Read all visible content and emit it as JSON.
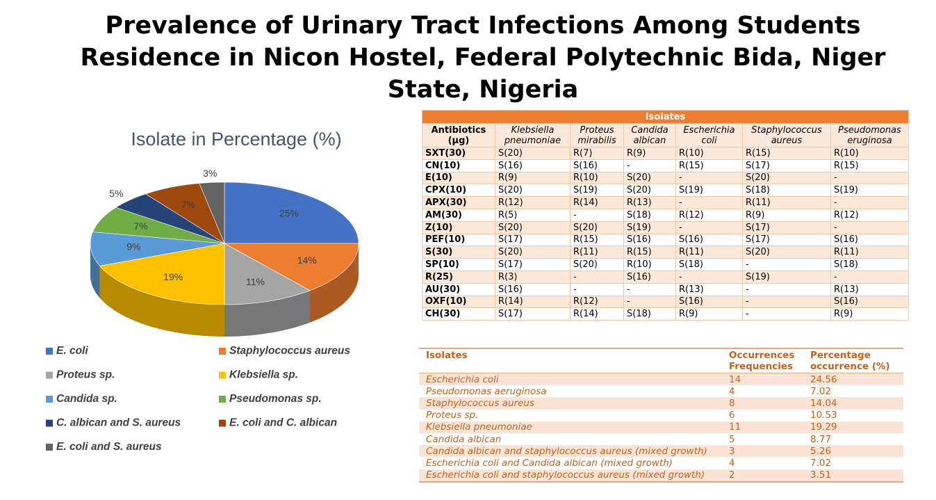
{
  "title": "Prevalence of Urinary Tract Infections Among Students Residence in Nicon Hostel, Federal Polytechnic Bida, Niger State, Nigeria",
  "chart_data": {
    "type": "pie",
    "title": "Isolate in Percentage  (%)",
    "categories": [
      "E. coli",
      "Staphylococcus aureus",
      "Proteus sp.",
      "Klebsiella sp.",
      "Candida sp.",
      "Pseudomonas sp.",
      "C. albican and S. aureus",
      "E. coli and C. albican",
      "E. coli and S. aureus"
    ],
    "values": [
      25,
      14,
      11,
      19,
      9,
      7,
      5,
      7,
      3
    ],
    "value_labels": [
      "25%",
      "14%",
      "11%",
      "19%",
      "9%",
      "7%",
      "5%",
      "7%",
      "3%"
    ],
    "colors": [
      "#4472c4",
      "#ed7d31",
      "#a5a5a5",
      "#ffc000",
      "#5b9bd5",
      "#70ad47",
      "#264478",
      "#9e480e",
      "#636363"
    ]
  },
  "table1": {
    "title": "Isolates",
    "header": [
      "Antibiotics (µg)",
      "Klebsiella pneumoniae",
      "Proteus mirabilis",
      "Candida albican",
      "Escherichia coli",
      "Staphylococcus aureus",
      "Pseudomonas eruginosa"
    ],
    "rows": [
      [
        "SXT(30)",
        "S(20)",
        "R(7)",
        "R(9)",
        "R(10)",
        "R(15)",
        "R(10)"
      ],
      [
        "CN(10)",
        "S(16)",
        "S(16)",
        "-",
        "R(15)",
        "S(17)",
        "R(15)"
      ],
      [
        "E(10)",
        "R(9)",
        "R(10)",
        "S(20)",
        "-",
        "S(20)",
        "-"
      ],
      [
        "CPX(10)",
        "S(20)",
        "S(19)",
        "S(20)",
        "S(19)",
        "S(18)",
        "S(19)"
      ],
      [
        "APX(30)",
        "R(12)",
        "R(14)",
        "R(13)",
        "-",
        "R(11)",
        "-"
      ],
      [
        "AM(30)",
        "R(5)",
        "-",
        "S(18)",
        "R(12)",
        "R(9)",
        "R(12)"
      ],
      [
        "Z(10)",
        "S(20)",
        "S(20)",
        "S(19)",
        "-",
        "S(17)",
        "-"
      ],
      [
        "PEF(10)",
        "S(17)",
        "R(15)",
        "S(16)",
        "S(16)",
        "S(17)",
        "S(16)"
      ],
      [
        "S(30)",
        "S(20)",
        "R(11)",
        "R(15)",
        "R(11)",
        "S(20)",
        "R(11)"
      ],
      [
        "SP(10)",
        "S(17)",
        "S(20)",
        "R(10)",
        "S(18)",
        "-",
        "S(18)"
      ],
      [
        "R(25)",
        "R(3)",
        "-",
        "S(16)",
        "-",
        "S(19)",
        "-"
      ],
      [
        "AU(30)",
        "S(16)",
        "-",
        "-",
        "R(13)",
        "-",
        "R(13)"
      ],
      [
        "OXF(10)",
        "R(14)",
        "R(12)",
        "-",
        "S(16)",
        "-",
        "S(16)"
      ],
      [
        "CH(30)",
        "S(17)",
        "R(14)",
        "S(18)",
        "R(9)",
        "-",
        "R(9)"
      ]
    ]
  },
  "table2": {
    "header": [
      "Isolates",
      "Occurrences Frequencies",
      "Percentage occurrence (%)"
    ],
    "rows": [
      [
        "Escherichia coli",
        14,
        24.56
      ],
      [
        "Pseudomonas aeruginosa",
        4,
        7.02
      ],
      [
        "Staphylococcus aureus",
        8,
        14.04
      ],
      [
        "Proteus sp.",
        6,
        10.53
      ],
      [
        "Klebsiella pneumoniae",
        11,
        19.29
      ],
      [
        "Candida albican",
        5,
        8.77
      ],
      [
        "Candida albican and staphylococcus aureus (mixed growth)",
        3,
        5.26
      ],
      [
        "Escherichia coli and Candida albican (mixed growth)",
        4,
        7.02
      ],
      [
        "Escherichia coli and staphylococcus aureus (mixed growth)",
        2,
        3.51
      ]
    ]
  }
}
